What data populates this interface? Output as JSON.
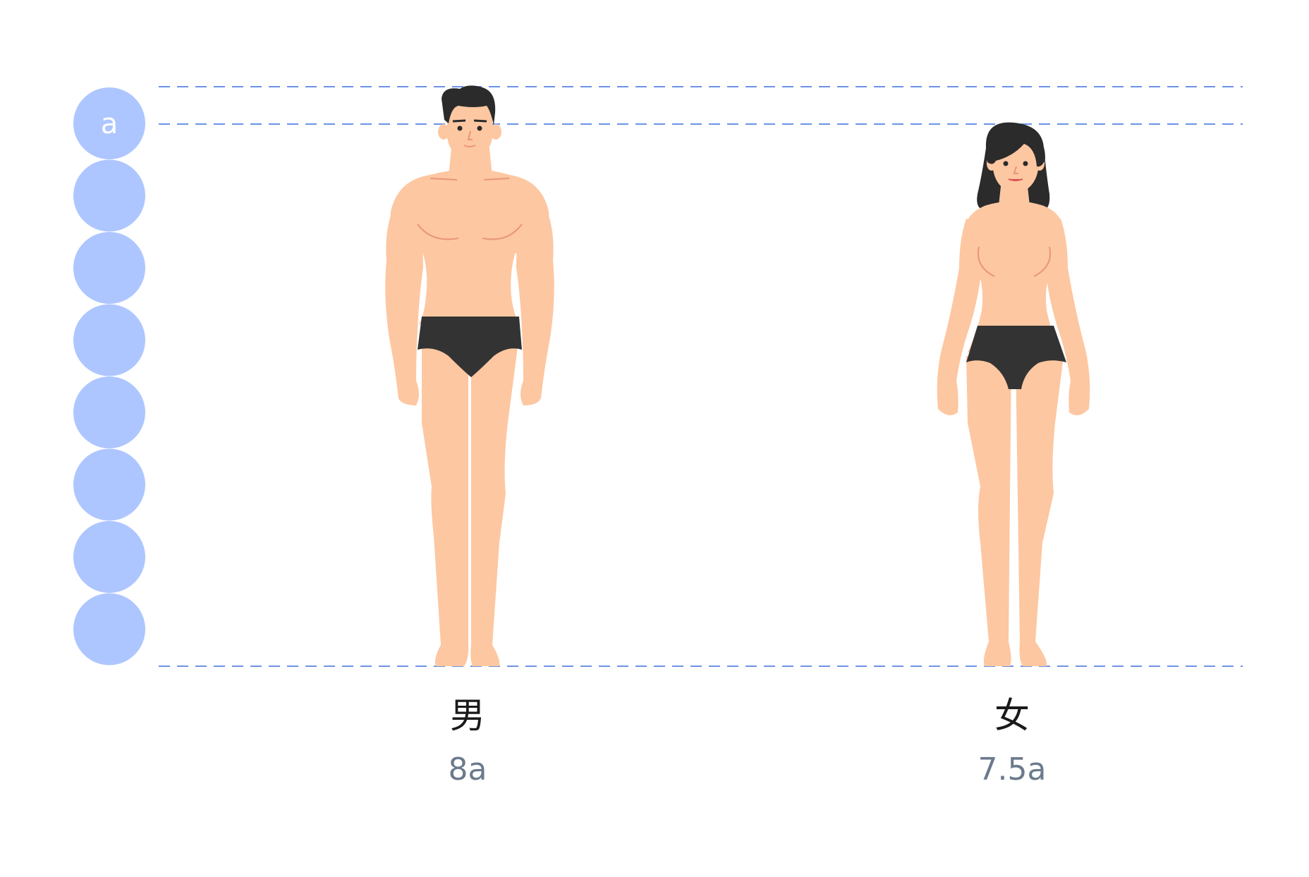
{
  "diagram": {
    "unit_label": "a",
    "head_unit_count": 8,
    "colors": {
      "unit_circle": "#aec6ff",
      "unit_text": "#ffffff",
      "guide_line": "#6b93e6",
      "skin": "#fdc7a1",
      "skin_line": "#e8957a",
      "hair": "#2b2b2b",
      "underwear": "#333333"
    },
    "figures": [
      {
        "gender": "男",
        "ratio": "8a",
        "heads": 8
      },
      {
        "gender": "女",
        "ratio": "7.5a",
        "heads": 7.5
      }
    ]
  }
}
